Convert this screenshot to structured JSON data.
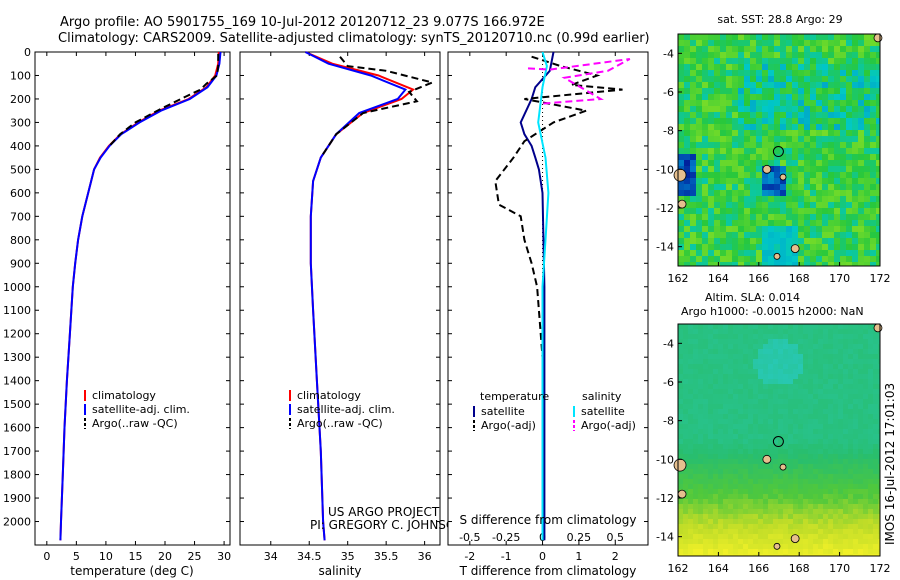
{
  "header": {
    "line1": "Argo profile: AO 5901755_169 10-Jul-2012 20120712_23 9.077S 166.972E",
    "line2": "Climatology: CARS2009. Satellite-adjusted climatology: synTS_20120710.nc (0.99d earlier)"
  },
  "credit": {
    "line1": "US ARGO PROJECT",
    "line2": "PI: GREGORY C. JOHNSON"
  },
  "side_stamp": "IMOS 16-Jul-2012 17:01:03",
  "chart_data": [
    {
      "id": "temperature",
      "type": "line",
      "xlabel": "temperature (deg C)",
      "xlim": [
        -2,
        31
      ],
      "ylim": [
        0,
        2100
      ],
      "xticks": [
        0,
        5,
        10,
        15,
        20,
        25,
        30
      ],
      "yticks": [
        0,
        100,
        200,
        300,
        400,
        500,
        600,
        700,
        800,
        900,
        1000,
        1100,
        1200,
        1300,
        1400,
        1500,
        1600,
        1700,
        1800,
        1900,
        2000
      ],
      "legend": [
        "climatology",
        "satellite-adj. clim.",
        "Argo(..raw -QC)"
      ],
      "legend_position": "lower-right",
      "series": [
        {
          "name": "climatology",
          "color": "#ff0000",
          "style": "solid",
          "points": [
            [
              29.1,
              0
            ],
            [
              29.0,
              50
            ],
            [
              28.5,
              100
            ],
            [
              27.0,
              150
            ],
            [
              24.0,
              200
            ],
            [
              19.0,
              250
            ],
            [
              15.5,
              300
            ],
            [
              12.5,
              350
            ],
            [
              10.5,
              400
            ],
            [
              9.0,
              450
            ],
            [
              8.0,
              500
            ],
            [
              7.0,
              600
            ],
            [
              6.0,
              700
            ],
            [
              5.3,
              800
            ],
            [
              4.8,
              900
            ],
            [
              4.4,
              1000
            ],
            [
              3.9,
              1200
            ],
            [
              3.4,
              1400
            ],
            [
              3.0,
              1600
            ],
            [
              2.7,
              1800
            ],
            [
              2.4,
              2000
            ],
            [
              2.3,
              2080
            ]
          ]
        },
        {
          "name": "satellite-adj. clim.",
          "color": "#0000ff",
          "style": "solid",
          "points": [
            [
              29.4,
              0
            ],
            [
              29.2,
              50
            ],
            [
              28.7,
              100
            ],
            [
              27.2,
              150
            ],
            [
              24.2,
              200
            ],
            [
              19.3,
              250
            ],
            [
              15.7,
              300
            ],
            [
              12.6,
              350
            ],
            [
              10.6,
              400
            ],
            [
              9.1,
              450
            ],
            [
              8.0,
              500
            ],
            [
              7.0,
              600
            ],
            [
              6.0,
              700
            ],
            [
              5.3,
              800
            ],
            [
              4.8,
              900
            ],
            [
              4.4,
              1000
            ],
            [
              3.9,
              1200
            ],
            [
              3.4,
              1400
            ],
            [
              3.0,
              1600
            ],
            [
              2.7,
              1800
            ],
            [
              2.4,
              2000
            ],
            [
              2.3,
              2080
            ]
          ]
        },
        {
          "name": "Argo(..raw -QC)",
          "color": "#000000",
          "style": "dashed",
          "points": [
            [
              29.0,
              8
            ],
            [
              29.0,
              60
            ],
            [
              28.8,
              100
            ],
            [
              27.0,
              135
            ],
            [
              26.0,
              160
            ],
            [
              23.5,
              190
            ],
            [
              19.5,
              240
            ],
            [
              15.0,
              300
            ],
            [
              12.4,
              350
            ],
            [
              10.6,
              400
            ]
          ]
        }
      ]
    },
    {
      "id": "salinity",
      "type": "line",
      "xlabel": "salinity",
      "xlim": [
        33.6,
        36.2
      ],
      "ylim": [
        0,
        2100
      ],
      "xticks": [
        34,
        34.5,
        35,
        35.5,
        36
      ],
      "legend": [
        "climatology",
        "satellite-adj. clim.",
        "Argo(..raw -QC)"
      ],
      "legend_position": "lower-right",
      "series": [
        {
          "name": "climatology",
          "color": "#ff0000",
          "style": "solid",
          "points": [
            [
              34.45,
              0
            ],
            [
              34.8,
              50
            ],
            [
              35.4,
              100
            ],
            [
              35.85,
              160
            ],
            [
              35.7,
              200
            ],
            [
              35.2,
              260
            ],
            [
              34.85,
              350
            ],
            [
              34.65,
              450
            ],
            [
              34.55,
              550
            ],
            [
              34.52,
              700
            ],
            [
              34.52,
              900
            ],
            [
              34.55,
              1100
            ],
            [
              34.6,
              1400
            ],
            [
              34.65,
              1700
            ],
            [
              34.68,
              2000
            ],
            [
              34.7,
              2080
            ]
          ]
        },
        {
          "name": "satellite-adj. clim.",
          "color": "#0000ff",
          "style": "solid",
          "points": [
            [
              34.45,
              0
            ],
            [
              34.75,
              50
            ],
            [
              35.3,
              100
            ],
            [
              35.75,
              160
            ],
            [
              35.65,
              200
            ],
            [
              35.15,
              260
            ],
            [
              34.85,
              350
            ],
            [
              34.65,
              450
            ],
            [
              34.55,
              550
            ],
            [
              34.52,
              700
            ],
            [
              34.52,
              900
            ],
            [
              34.55,
              1100
            ],
            [
              34.6,
              1400
            ],
            [
              34.65,
              1700
            ],
            [
              34.68,
              2000
            ],
            [
              34.7,
              2080
            ]
          ]
        },
        {
          "name": "Argo(..raw -QC)",
          "color": "#000000",
          "style": "dashed",
          "points": [
            [
              34.9,
              20
            ],
            [
              35.0,
              60
            ],
            [
              35.5,
              80
            ],
            [
              36.1,
              130
            ],
            [
              35.8,
              170
            ],
            [
              35.9,
              210
            ],
            [
              35.2,
              260
            ],
            [
              34.85,
              350
            ],
            [
              34.65,
              450
            ]
          ]
        }
      ]
    },
    {
      "id": "differences",
      "type": "line",
      "xlabel": "T difference from climatology",
      "x2label": "S difference from climatology",
      "xlim": [
        -2.6,
        2.9
      ],
      "x2lim": [
        -0.65,
        0.725
      ],
      "ylim": [
        0,
        2100
      ],
      "xticks": [
        -2,
        -1,
        0,
        1,
        2
      ],
      "x2ticks": [
        -0.5,
        -0.25,
        0,
        0.25,
        0.5
      ],
      "legend_temperature_title": "temperature",
      "legend_salinity_title": "salinity",
      "legend": [
        "satellite",
        "Argo(-adj)",
        "satellite",
        "Argo(-adj)"
      ],
      "legend_position": "lower",
      "series": [
        {
          "name": "temperature satellite",
          "color": "#00008b",
          "style": "solid",
          "axis": "T",
          "points": [
            [
              0.3,
              0
            ],
            [
              0.2,
              80
            ],
            [
              -0.2,
              150
            ],
            [
              -0.3,
              200
            ],
            [
              -0.6,
              300
            ],
            [
              -0.5,
              350
            ],
            [
              -0.3,
              400
            ],
            [
              -0.2,
              450
            ],
            [
              -0.1,
              500
            ],
            [
              0.0,
              600
            ],
            [
              0.05,
              1000
            ],
            [
              0.05,
              2080
            ]
          ]
        },
        {
          "name": "temperature Argo(-adj)",
          "color": "#000000",
          "style": "dashed",
          "axis": "T",
          "points": [
            [
              -0.3,
              20
            ],
            [
              0.5,
              60
            ],
            [
              1.5,
              100
            ],
            [
              0.8,
              140
            ],
            [
              2.2,
              160
            ],
            [
              -0.5,
              200
            ],
            [
              1.2,
              250
            ],
            [
              0.3,
              300
            ],
            [
              -0.5,
              380
            ],
            [
              -0.8,
              450
            ],
            [
              -1.3,
              550
            ],
            [
              -1.2,
              650
            ],
            [
              -0.6,
              700
            ],
            [
              -0.5,
              800
            ],
            [
              -0.3,
              900
            ],
            [
              -0.15,
              1000
            ],
            [
              -0.1,
              1100
            ],
            [
              0.0,
              1300
            ],
            [
              0.0,
              2080
            ]
          ]
        },
        {
          "name": "salinity satellite",
          "color": "#00e5ff",
          "style": "solid",
          "axis": "S",
          "points": [
            [
              0.0,
              0
            ],
            [
              0.03,
              60
            ],
            [
              0.0,
              150
            ],
            [
              -0.03,
              300
            ],
            [
              0.02,
              450
            ],
            [
              0.04,
              600
            ],
            [
              0.02,
              800
            ],
            [
              0.0,
              1000
            ],
            [
              0.0,
              2080
            ]
          ]
        },
        {
          "name": "salinity Argo(-adj)",
          "color": "#ff00ff",
          "style": "dashed",
          "axis": "S",
          "points": [
            [
              -0.1,
              70
            ],
            [
              0.05,
              75
            ],
            [
              0.6,
              30
            ],
            [
              0.45,
              80
            ],
            [
              0.15,
              110
            ],
            [
              0.4,
              200
            ],
            [
              0.0,
              220
            ]
          ]
        }
      ]
    },
    {
      "id": "sst-map",
      "type": "heatmap",
      "title": "sat. SST: 28.8 Argo: 29",
      "xlim": [
        162,
        172
      ],
      "ylim": [
        -15,
        -3
      ],
      "xticks": [
        162,
        164,
        166,
        168,
        170,
        172
      ],
      "yticks": [
        -4,
        -6,
        -8,
        -10,
        -12,
        -14
      ],
      "marker": {
        "lon": 166.97,
        "lat": -9.08
      }
    },
    {
      "id": "sla-map",
      "type": "heatmap",
      "title_line1": "Altim. SLA: 0.014",
      "title_line2": "Argo h1000: -0.0015 h2000: NaN",
      "xlim": [
        162,
        172
      ],
      "ylim": [
        -15,
        -3
      ],
      "xticks": [
        162,
        164,
        166,
        168,
        170,
        172
      ],
      "yticks": [
        -4,
        -6,
        -8,
        -10,
        -12,
        -14
      ],
      "marker": {
        "lon": 166.97,
        "lat": -9.08
      }
    }
  ]
}
